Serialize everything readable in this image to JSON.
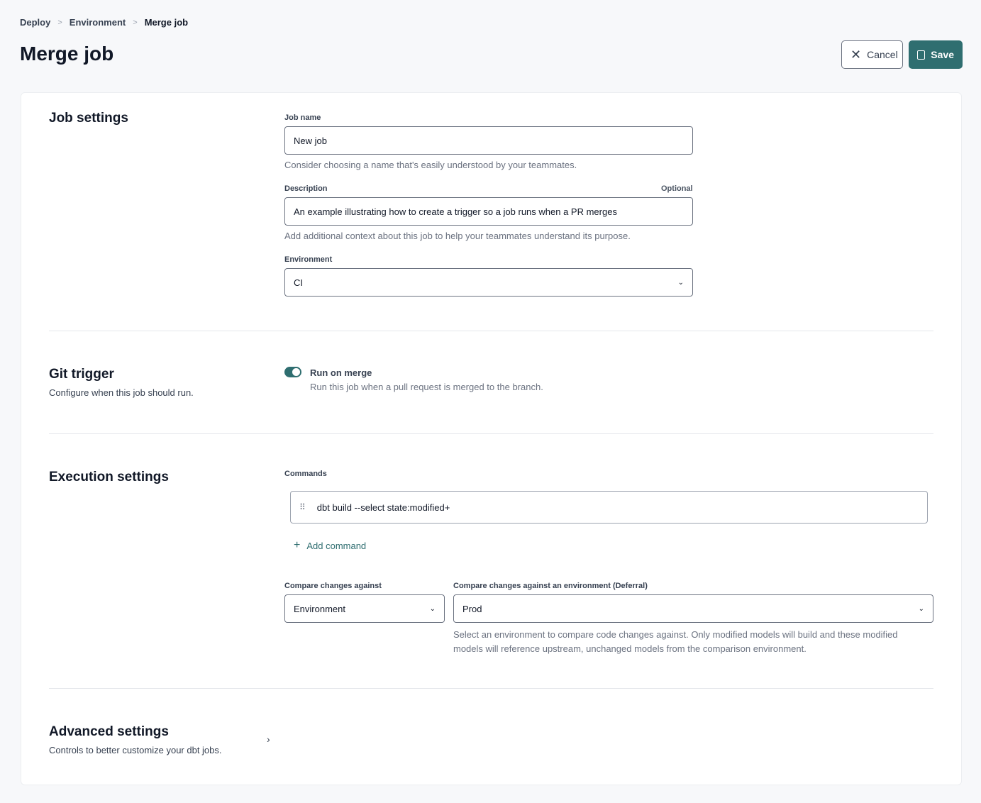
{
  "breadcrumb": [
    "Deploy",
    "Environment",
    "Merge job"
  ],
  "title": "Merge job",
  "header": {
    "cancel_label": "Cancel",
    "save_label": "Save"
  },
  "job_settings": {
    "title": "Job settings",
    "job_name_label": "Job name",
    "job_name_value": "New job",
    "job_name_help": "Consider choosing a name that's easily understood by your teammates.",
    "description_label": "Description",
    "description_optional": "Optional",
    "description_value": "An example illustrating how to create a trigger so a job runs when a PR merges",
    "description_help": "Add additional context about this job to help your teammates understand its purpose.",
    "environment_label": "Environment",
    "environment_value": "CI"
  },
  "git_trigger": {
    "title": "Git trigger",
    "subtitle": "Configure when this job should run.",
    "toggle_on": true,
    "toggle_label": "Run on merge",
    "toggle_help": "Run this job when a pull request is merged to the branch."
  },
  "execution": {
    "title": "Execution settings",
    "commands_label": "Commands",
    "commands": [
      "dbt build --select state:modified+"
    ],
    "add_command": "Add command",
    "compare_label": "Compare changes against",
    "compare_value": "Environment",
    "deferral_label": "Compare changes against an environment (Deferral)",
    "deferral_value": "Prod",
    "deferral_help": "Select an environment to compare code changes against. Only modified models will build and these modified models will reference upstream, unchanged models from the comparison environment."
  },
  "advanced": {
    "title": "Advanced settings",
    "subtitle": "Controls to better customize your dbt jobs."
  },
  "colors": {
    "accent": "#2f6e70"
  }
}
